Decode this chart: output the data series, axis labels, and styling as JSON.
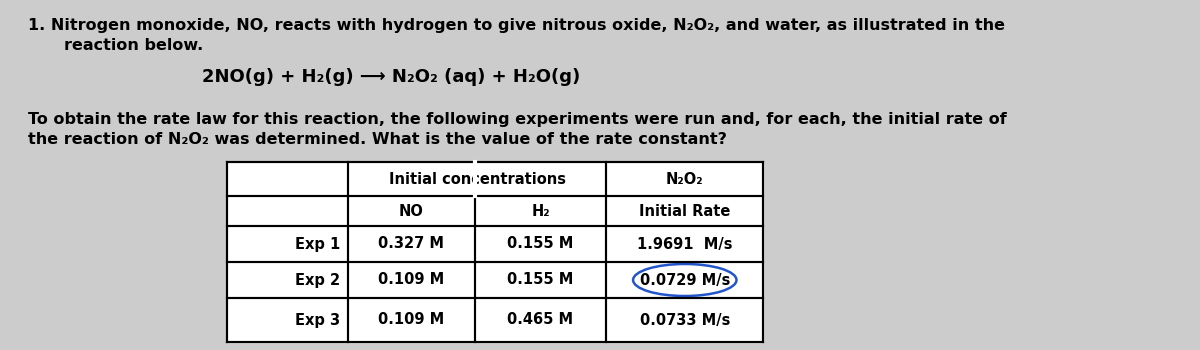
{
  "bg_color": "#cccccc",
  "table_bg": "#e8e8e8",
  "text_color": "#000000",
  "circle_color": "#2255cc",
  "line1": "1. Nitrogen monoxide, NO, reacts with hydrogen to give nitrous oxide, N₂O₂, and water, as illustrated in the",
  "line2": "    reaction below.",
  "equation": "2NO(g) + H₂(g) ⟶ N₂O₂ (aq) + H₂O(g)",
  "para1": "To obtain the rate law for this reaction, the following experiments were run and, for each, the initial rate of",
  "para2": "the reaction of N₂O₂ was determined. What is the value of the rate constant?",
  "header1_text": "Initial concentrations",
  "header1_n2o2": "N₂O₂",
  "header2_no": "NO",
  "header2_h2": "H₂",
  "header2_rate": "Initial Rate",
  "rows": [
    [
      "Exp 1",
      "0.327 M",
      "0.155 M",
      "1.9691  M/s"
    ],
    [
      "Exp 2",
      "0.109 M",
      "0.155 M",
      "0.0729 M/s"
    ],
    [
      "Exp 3",
      "0.109 M",
      "0.465 M",
      "0.0733 M/s"
    ]
  ],
  "fontsize_text": 11.5,
  "fontsize_eq": 13.0,
  "fontsize_table": 10.5
}
